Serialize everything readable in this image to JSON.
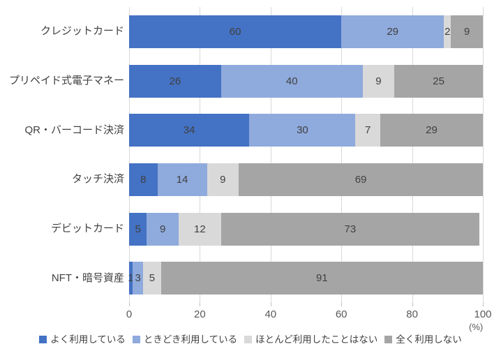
{
  "chart_data": {
    "type": "bar",
    "orientation": "horizontal-stacked",
    "title": "",
    "xlabel": "",
    "ylabel": "",
    "unit_label": "(%)",
    "xlim": [
      0,
      100
    ],
    "x_ticks": [
      0,
      20,
      40,
      60,
      80,
      100
    ],
    "grid": true,
    "legend_position": "bottom",
    "categories": [
      "クレジットカード",
      "プリペイド式電子マネー",
      "QR・バーコード決済",
      "タッチ決済",
      "デビットカード",
      "NFT・暗号資産"
    ],
    "series": [
      {
        "name": "よく利用している",
        "color": "#4472C4",
        "values": [
          60,
          26,
          34,
          8,
          5,
          1
        ]
      },
      {
        "name": "ときどき利用している",
        "color": "#8FAADC",
        "values": [
          29,
          40,
          30,
          14,
          9,
          3
        ]
      },
      {
        "name": "ほとんど利用したことはない",
        "color": "#D9D9D9",
        "values": [
          2,
          9,
          7,
          9,
          12,
          5
        ]
      },
      {
        "name": "全く利用しない",
        "color": "#A5A5A5",
        "values": [
          9,
          25,
          29,
          69,
          73,
          91
        ]
      }
    ],
    "colors": {
      "gridline": "#d9d9d9",
      "tick": "#bfbfbf",
      "label_text": "#404040",
      "axis_text": "#595959",
      "background": "#ffffff"
    }
  }
}
